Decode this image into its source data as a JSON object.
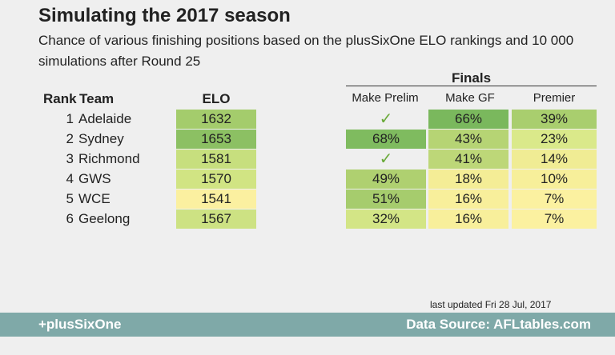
{
  "header": {
    "title": "Simulating the 2017 season",
    "subtitle": "Chance of various finishing positions based on the plusSixOne ELO rankings and 10 000 simulations after Round 25"
  },
  "columns": {
    "rank": "Rank",
    "team": "Team",
    "elo": "ELO",
    "finals": "Finals",
    "make_prelim": "Make Prelim",
    "make_gf": "Make GF",
    "premier": "Premier"
  },
  "chart_data": {
    "type": "table",
    "title": "Simulating the 2017 season",
    "columns": [
      "Rank",
      "Team",
      "ELO",
      "Make Prelim",
      "Make GF",
      "Premier"
    ],
    "rows": [
      {
        "rank": "1",
        "team": "Adelaide",
        "elo": "1632",
        "make_prelim": "✓",
        "make_gf": "66%",
        "premier": "39%"
      },
      {
        "rank": "2",
        "team": "Sydney",
        "elo": "1653",
        "make_prelim": "68%",
        "make_gf": "43%",
        "premier": "23%"
      },
      {
        "rank": "3",
        "team": "Richmond",
        "elo": "1581",
        "make_prelim": "✓",
        "make_gf": "41%",
        "premier": "14%"
      },
      {
        "rank": "4",
        "team": "GWS",
        "elo": "1570",
        "make_prelim": "49%",
        "make_gf": "18%",
        "premier": "10%"
      },
      {
        "rank": "5",
        "team": "WCE",
        "elo": "1541",
        "make_prelim": "51%",
        "make_gf": "16%",
        "premier": "7%"
      },
      {
        "rank": "6",
        "team": "Geelong",
        "elo": "1567",
        "make_prelim": "32%",
        "make_gf": "16%",
        "premier": "7%"
      }
    ]
  },
  "colors": {
    "elo": [
      "#a4cc6c",
      "#8cc063",
      "#c7df7e",
      "#d1e483",
      "#fbf0a0",
      "#cde283"
    ],
    "make_prelim": [
      null,
      "#7fbb5f",
      null,
      "#afd070",
      "#a6cc6d",
      "#d3e586"
    ],
    "make_gf": [
      "#7ab85d",
      "#b6d474",
      "#bdd778",
      "#f4ed96",
      "#f8ef9b",
      "#f8ef9b"
    ],
    "premier": [
      "#a9ce6e",
      "#dae98a",
      "#f0ec94",
      "#f7ef9a",
      "#fbf1a0",
      "#fbf1a0"
    ]
  },
  "footer": {
    "updated": "last updated Fri 28 Jul, 2017",
    "brand": "+plusSixOne",
    "source": "Data Source: AFLtables.com"
  }
}
